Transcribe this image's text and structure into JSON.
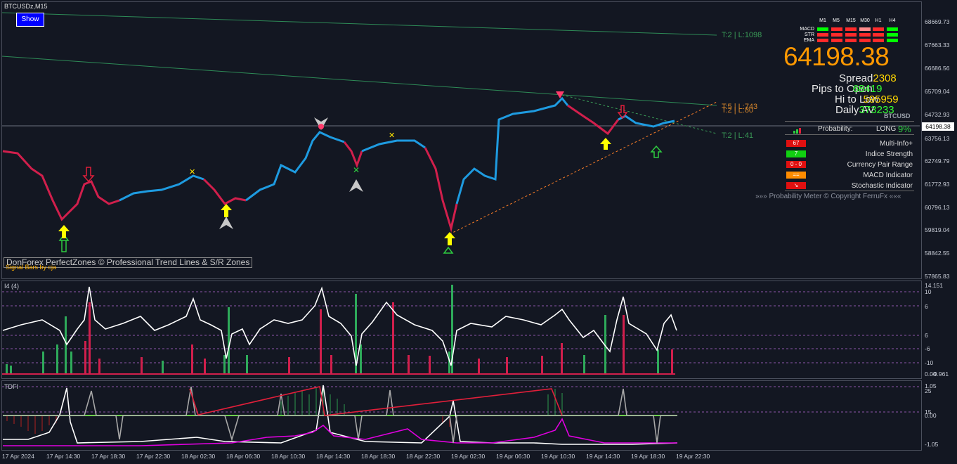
{
  "window": {
    "title": "BTCUSDz,M15",
    "show_button": "Show"
  },
  "watermarks": {
    "perfectzones": "DonForex PerfectZones © Professional Trend Lines & S/R Zones",
    "signal_bars": "Signal Bars by cja"
  },
  "trendline_labels": [
    {
      "text": "T:2 | L:1098",
      "color": "#3a9b57"
    },
    {
      "text": "T:5 | L:743",
      "color": "#d4852b"
    },
    {
      "text": "T:2 | L:80",
      "color": "#d4852b"
    },
    {
      "text": "T:2 | L:41",
      "color": "#3a9b57"
    }
  ],
  "price_axis": [
    "68669.73",
    "67663.33",
    "66686.56",
    "65709.04",
    "64732.93",
    "63756.13",
    "62749.79",
    "61772.93",
    "60796.13",
    "59819.04",
    "58842.55",
    "57865.83"
  ],
  "current_price_tag": "64198.38",
  "indicator1": {
    "label": "I4 (4)",
    "axis": [
      "14.151",
      "10",
      "6",
      "6",
      "-6",
      "-10",
      "0.00",
      "-9.961"
    ]
  },
  "indicator2": {
    "label": "TDFI",
    "axis": [
      "1.05",
      "25",
      "15",
      "0.00",
      "-1.05"
    ]
  },
  "time_axis": [
    "17 Apr 2024",
    "17 Apr 14:30",
    "17 Apr 18:30",
    "17 Apr 22:30",
    "18 Apr 02:30",
    "18 Apr 06:30",
    "18 Apr 10:30",
    "18 Apr 14:30",
    "18 Apr 18:30",
    "18 Apr 22:30",
    "19 Apr 02:30",
    "19 Apr 06:30",
    "19 Apr 10:30",
    "19 Apr 14:30",
    "19 Apr 18:30",
    "19 Apr 22:30"
  ],
  "mtf": {
    "timeframes": [
      "M1",
      "M5",
      "M15",
      "M30",
      "H1",
      "H4"
    ],
    "rows": [
      "MACD",
      "STR",
      "EMA"
    ],
    "colors": {
      "MACD": [
        "#00ff00",
        "#ff2a2a",
        "#ff2a2a",
        "#ff8c8c",
        "#ff2a2a",
        "#00ff00"
      ],
      "STR": [
        "#ff2a2a",
        "#ff2a2a",
        "#ff2a2a",
        "#ff2a2a",
        "#ff2a2a",
        "#00ff00"
      ],
      "EMA": [
        "#ff2a2a",
        "#ff2a2a",
        "#ff2a2a",
        "#ff2a2a",
        "#ff2a2a",
        "#00ff00"
      ]
    }
  },
  "price_display": {
    "big_price": "64198.38",
    "symbol": "BTCUSD",
    "spread_label": "Spread",
    "spread_value": "2308",
    "pips_open_label": "Pips to Open",
    "pips_open_value": "68419",
    "hilo_label": "Hi to Low",
    "hilo_value": "595959",
    "daily_label": "Daily AV",
    "daily_value": "373233"
  },
  "probability_meter": {
    "probability_label": "Probability:",
    "direction": "LONG",
    "percent": "9%",
    "rows": [
      {
        "box": "67",
        "box_color": "#e01010",
        "name": "Multi-Info+"
      },
      {
        "box": "7",
        "box_color": "#11d011",
        "name": "Indice Strength"
      },
      {
        "box": "0 - 0",
        "box_color": "#e01010",
        "name": "Currency Pair Range"
      },
      {
        "box": "==",
        "box_color": "#ff8c00",
        "name": "MACD Indicator"
      },
      {
        "box": "↘",
        "box_color": "#e01010",
        "name": "Stochastic Indicator"
      }
    ],
    "copyright": "»»» Probability Meter © Copyright FerruFx «««"
  }
}
